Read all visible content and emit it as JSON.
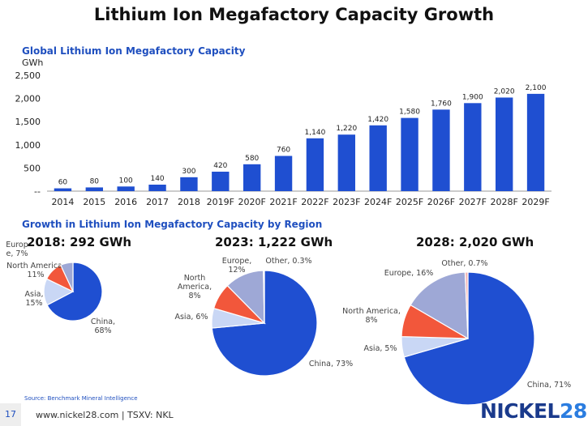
{
  "title": "Lithium Ion Megafactory Capacity Growth",
  "colors": {
    "bar": "#1f4fd1",
    "heading": "#1f4fbf",
    "china": "#1f4fd1",
    "asia": "#c9d7f5",
    "north_america": "#f2573b",
    "europe": "#9ea8d6",
    "other": "#f3b6b6"
  },
  "bar_section": {
    "heading": "Global Lithium Ion Megafactory Capacity",
    "unit": "GWh"
  },
  "region_section": {
    "heading": "Growth in Lithium Ion Megafactory Capacity by Region"
  },
  "chart_data": [
    {
      "type": "bar",
      "title": "Global Lithium Ion Megafactory Capacity",
      "ylabel": "GWh",
      "categories": [
        "2014",
        "2015",
        "2016",
        "2017",
        "2018",
        "2019F",
        "2020F",
        "2021F",
        "2022F",
        "2023F",
        "2024F",
        "2025F",
        "2026F",
        "2027F",
        "2028F",
        "2029F"
      ],
      "values": [
        60,
        80,
        100,
        140,
        300,
        420,
        580,
        760,
        1140,
        1220,
        1420,
        1580,
        1760,
        1900,
        2020,
        2100
      ],
      "value_labels": [
        "60",
        "80",
        "100",
        "140",
        "300",
        "420",
        "580",
        "760",
        "1,140",
        "1,220",
        "1,420",
        "1,580",
        "1,760",
        "1,900",
        "2,020",
        "2,100"
      ],
      "ylim": [
        0,
        2500
      ],
      "yticks": [
        0,
        500,
        1000,
        1500,
        2000,
        2500
      ],
      "ytick_labels": [
        "--",
        "500",
        "1,000",
        "1,500",
        "2,000",
        "2,500"
      ],
      "grid": false
    },
    {
      "type": "pie",
      "title": "2018: 292 GWh",
      "slices": [
        {
          "label": "China",
          "pct": 68,
          "text": "China,\n68%"
        },
        {
          "label": "Asia",
          "pct": 15,
          "text": "Asia,\n15%"
        },
        {
          "label": "North America",
          "pct": 11,
          "text": "North America,\n11%"
        },
        {
          "label": "Europe",
          "pct": 7,
          "text": "Europ\ne, 7%"
        }
      ]
    },
    {
      "type": "pie",
      "title": "2023: 1,222 GWh",
      "slices": [
        {
          "label": "China",
          "pct": 73,
          "text": "China, 73%"
        },
        {
          "label": "Asia",
          "pct": 6,
          "text": "Asia, 6%"
        },
        {
          "label": "North America",
          "pct": 8,
          "text": "North\nAmerica,\n8%"
        },
        {
          "label": "Europe",
          "pct": 12,
          "text": "Europe,\n12%"
        },
        {
          "label": "Other",
          "pct": 0.3,
          "text": "Other, 0.3%"
        }
      ]
    },
    {
      "type": "pie",
      "title": "2028: 2,020 GWh",
      "slices": [
        {
          "label": "China",
          "pct": 71,
          "text": "China, 71%"
        },
        {
          "label": "Asia",
          "pct": 5,
          "text": "Asia, 5%"
        },
        {
          "label": "North America",
          "pct": 8,
          "text": "North America,\n8%"
        },
        {
          "label": "Europe",
          "pct": 16,
          "text": "Europe, 16%"
        },
        {
          "label": "Other",
          "pct": 0.7,
          "text": "Other, 0.7%"
        }
      ]
    }
  ],
  "source": "Source: Benchmark Mineral Intelligence",
  "footer": {
    "page_number": "17",
    "site": "www.nickel28.com  |  TSXV: NKL"
  },
  "logo": {
    "word": "NICKEL",
    "number": "28"
  }
}
